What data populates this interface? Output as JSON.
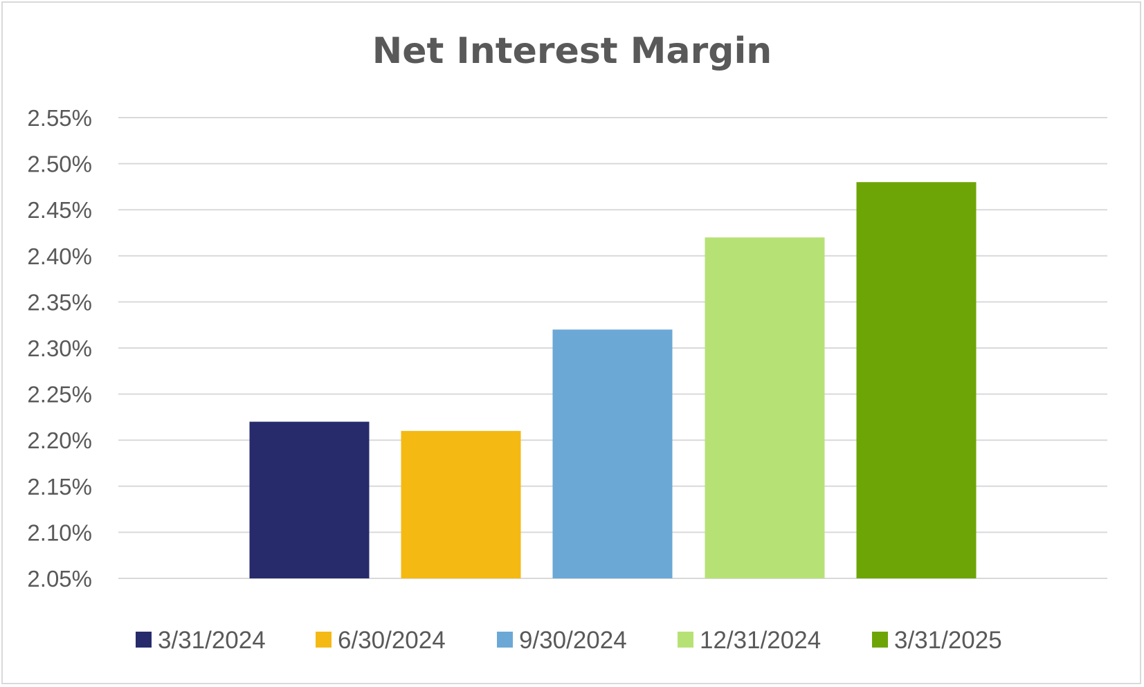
{
  "chart_data": {
    "type": "bar",
    "title": "Net Interest Margin",
    "xlabel": "",
    "ylabel": "",
    "categories": [
      "3/31/2024",
      "6/30/2024",
      "9/30/2024",
      "12/31/2024",
      "3/31/2025"
    ],
    "values": [
      2.22,
      2.21,
      2.32,
      2.42,
      2.48
    ],
    "value_unit": "%",
    "colors": [
      "#272B6B",
      "#F5B914",
      "#6BA8D6",
      "#B6E275",
      "#6DA507"
    ],
    "ylim": [
      2.05,
      2.55
    ],
    "yticks": [
      2.05,
      2.1,
      2.15,
      2.2,
      2.25,
      2.3,
      2.35,
      2.4,
      2.45,
      2.5,
      2.55
    ],
    "ytick_labels": [
      "2.05%",
      "2.10%",
      "2.15%",
      "2.20%",
      "2.25%",
      "2.30%",
      "2.35%",
      "2.40%",
      "2.45%",
      "2.50%",
      "2.55%"
    ],
    "grid": true,
    "legend": {
      "position": "bottom",
      "entries": [
        "3/31/2024",
        "6/30/2024",
        "9/30/2024",
        "12/31/2024",
        "3/31/2025"
      ]
    },
    "gridline_color": "#d9d9d9"
  }
}
